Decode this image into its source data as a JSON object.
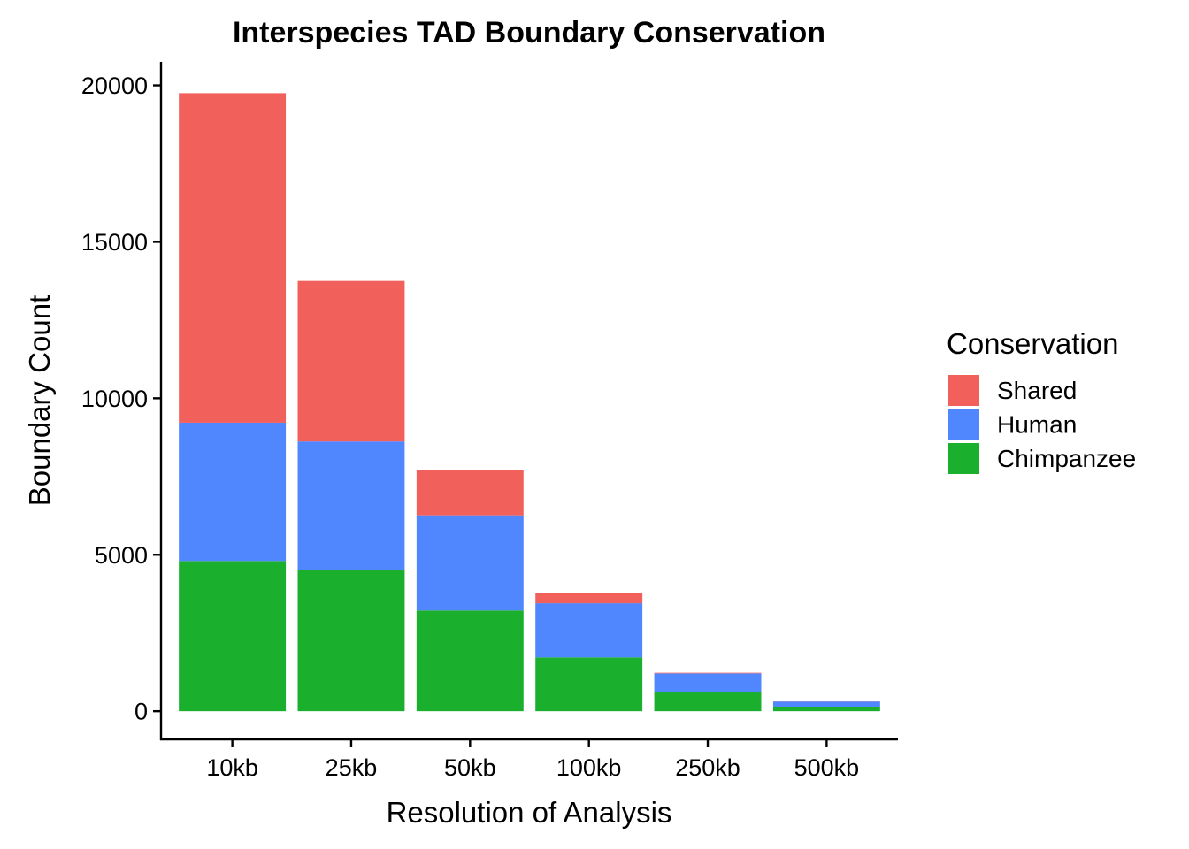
{
  "chart_data": {
    "type": "bar",
    "stacked": true,
    "title": "Interspecies TAD Boundary Conservation",
    "xlabel": "Resolution of Analysis",
    "ylabel": "Boundary Count",
    "categories": [
      "10kb",
      "25kb",
      "50kb",
      "100kb",
      "250kb",
      "500kb"
    ],
    "series": [
      {
        "name": "Chimpanzee",
        "color": "#1AB02E",
        "values": [
          4800,
          4520,
          3220,
          1720,
          600,
          120
        ]
      },
      {
        "name": "Human",
        "color": "#5087FF",
        "values": [
          4420,
          4100,
          3040,
          1730,
          610,
          190
        ]
      },
      {
        "name": "Shared",
        "color": "#F2605C",
        "values": [
          10530,
          5130,
          1460,
          330,
          20,
          5
        ]
      }
    ],
    "ylim": [
      -900,
      20750
    ],
    "yticks": [
      0,
      5000,
      10000,
      15000,
      20000
    ],
    "grid": false,
    "legend": {
      "title": "Conservation",
      "position": "right",
      "order": [
        "Shared",
        "Human",
        "Chimpanzee"
      ]
    }
  }
}
